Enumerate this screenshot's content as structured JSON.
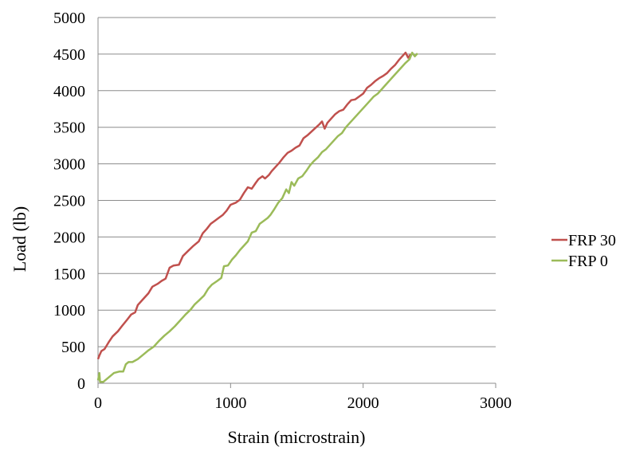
{
  "chart_data": {
    "type": "line",
    "title": "",
    "xlabel": "Strain (microstrain)",
    "ylabel": "Load (lb)",
    "xlim": [
      0,
      3000
    ],
    "ylim": [
      0,
      5000
    ],
    "x_ticks": [
      0,
      1000,
      2000,
      3000
    ],
    "y_ticks": [
      0,
      500,
      1000,
      1500,
      2000,
      2500,
      3000,
      3500,
      4000,
      4500,
      5000
    ],
    "grid": "horizontal",
    "legend": "right",
    "series": [
      {
        "name": "FRP 30",
        "color": "#C0504D",
        "points": [
          [
            0,
            330
          ],
          [
            10,
            380
          ],
          [
            25,
            440
          ],
          [
            50,
            470
          ],
          [
            80,
            560
          ],
          [
            110,
            640
          ],
          [
            150,
            710
          ],
          [
            180,
            780
          ],
          [
            220,
            870
          ],
          [
            250,
            940
          ],
          [
            280,
            970
          ],
          [
            300,
            1070
          ],
          [
            340,
            1150
          ],
          [
            380,
            1230
          ],
          [
            410,
            1320
          ],
          [
            450,
            1360
          ],
          [
            480,
            1400
          ],
          [
            510,
            1430
          ],
          [
            540,
            1580
          ],
          [
            570,
            1610
          ],
          [
            610,
            1620
          ],
          [
            640,
            1740
          ],
          [
            680,
            1810
          ],
          [
            720,
            1880
          ],
          [
            760,
            1940
          ],
          [
            790,
            2050
          ],
          [
            820,
            2110
          ],
          [
            850,
            2180
          ],
          [
            880,
            2220
          ],
          [
            910,
            2260
          ],
          [
            940,
            2300
          ],
          [
            970,
            2360
          ],
          [
            1000,
            2440
          ],
          [
            1040,
            2470
          ],
          [
            1070,
            2510
          ],
          [
            1100,
            2600
          ],
          [
            1130,
            2680
          ],
          [
            1160,
            2660
          ],
          [
            1190,
            2740
          ],
          [
            1210,
            2790
          ],
          [
            1240,
            2830
          ],
          [
            1260,
            2800
          ],
          [
            1290,
            2850
          ],
          [
            1310,
            2900
          ],
          [
            1340,
            2960
          ],
          [
            1370,
            3020
          ],
          [
            1400,
            3090
          ],
          [
            1430,
            3150
          ],
          [
            1460,
            3180
          ],
          [
            1490,
            3220
          ],
          [
            1520,
            3250
          ],
          [
            1550,
            3350
          ],
          [
            1580,
            3390
          ],
          [
            1610,
            3440
          ],
          [
            1640,
            3490
          ],
          [
            1670,
            3540
          ],
          [
            1690,
            3580
          ],
          [
            1710,
            3480
          ],
          [
            1730,
            3560
          ],
          [
            1760,
            3620
          ],
          [
            1790,
            3680
          ],
          [
            1820,
            3720
          ],
          [
            1850,
            3740
          ],
          [
            1880,
            3810
          ],
          [
            1910,
            3870
          ],
          [
            1940,
            3880
          ],
          [
            1970,
            3920
          ],
          [
            2000,
            3960
          ],
          [
            2030,
            4040
          ],
          [
            2060,
            4080
          ],
          [
            2090,
            4130
          ],
          [
            2120,
            4170
          ],
          [
            2150,
            4200
          ],
          [
            2180,
            4240
          ],
          [
            2210,
            4300
          ],
          [
            2240,
            4350
          ],
          [
            2270,
            4420
          ],
          [
            2300,
            4480
          ],
          [
            2320,
            4520
          ],
          [
            2340,
            4450
          ],
          [
            2360,
            4500
          ]
        ]
      },
      {
        "name": "FRP 0",
        "color": "#9BBB59",
        "points": [
          [
            0,
            40
          ],
          [
            10,
            140
          ],
          [
            15,
            20
          ],
          [
            40,
            20
          ],
          [
            80,
            80
          ],
          [
            120,
            140
          ],
          [
            160,
            160
          ],
          [
            190,
            160
          ],
          [
            210,
            260
          ],
          [
            230,
            290
          ],
          [
            260,
            290
          ],
          [
            300,
            330
          ],
          [
            340,
            390
          ],
          [
            380,
            450
          ],
          [
            420,
            500
          ],
          [
            460,
            580
          ],
          [
            500,
            650
          ],
          [
            540,
            710
          ],
          [
            580,
            780
          ],
          [
            620,
            860
          ],
          [
            660,
            940
          ],
          [
            700,
            1010
          ],
          [
            730,
            1080
          ],
          [
            760,
            1130
          ],
          [
            800,
            1200
          ],
          [
            830,
            1290
          ],
          [
            860,
            1350
          ],
          [
            900,
            1400
          ],
          [
            930,
            1440
          ],
          [
            950,
            1600
          ],
          [
            980,
            1610
          ],
          [
            1010,
            1690
          ],
          [
            1040,
            1750
          ],
          [
            1070,
            1820
          ],
          [
            1100,
            1880
          ],
          [
            1130,
            1940
          ],
          [
            1160,
            2060
          ],
          [
            1190,
            2080
          ],
          [
            1220,
            2180
          ],
          [
            1250,
            2220
          ],
          [
            1280,
            2260
          ],
          [
            1300,
            2300
          ],
          [
            1330,
            2380
          ],
          [
            1360,
            2470
          ],
          [
            1390,
            2530
          ],
          [
            1420,
            2650
          ],
          [
            1440,
            2600
          ],
          [
            1460,
            2750
          ],
          [
            1480,
            2700
          ],
          [
            1510,
            2800
          ],
          [
            1540,
            2830
          ],
          [
            1570,
            2900
          ],
          [
            1600,
            2980
          ],
          [
            1630,
            3040
          ],
          [
            1660,
            3090
          ],
          [
            1690,
            3160
          ],
          [
            1720,
            3200
          ],
          [
            1750,
            3260
          ],
          [
            1780,
            3320
          ],
          [
            1810,
            3380
          ],
          [
            1840,
            3420
          ],
          [
            1870,
            3500
          ],
          [
            1900,
            3560
          ],
          [
            1930,
            3620
          ],
          [
            1960,
            3680
          ],
          [
            1990,
            3740
          ],
          [
            2020,
            3800
          ],
          [
            2050,
            3860
          ],
          [
            2080,
            3920
          ],
          [
            2110,
            3960
          ],
          [
            2140,
            4020
          ],
          [
            2170,
            4080
          ],
          [
            2200,
            4140
          ],
          [
            2230,
            4200
          ],
          [
            2260,
            4260
          ],
          [
            2290,
            4320
          ],
          [
            2320,
            4380
          ],
          [
            2350,
            4430
          ],
          [
            2370,
            4520
          ],
          [
            2390,
            4470
          ],
          [
            2410,
            4510
          ]
        ]
      }
    ]
  }
}
